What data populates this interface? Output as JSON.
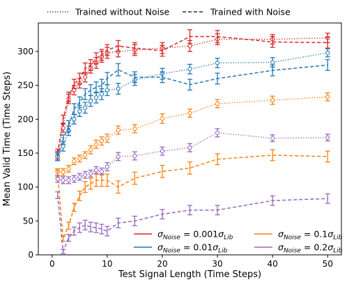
{
  "chart_data": {
    "type": "line",
    "xlabel": "Test Signal Length (Time Steps)",
    "ylabel": "Mean Valid Time (Time Steps)",
    "xlim": [
      -2.5,
      52.5
    ],
    "ylim": [
      0,
      342
    ],
    "xticks": [
      0,
      10,
      20,
      30,
      40,
      50
    ],
    "yticks": [
      0,
      50,
      100,
      150,
      200,
      250,
      300
    ],
    "grid": false,
    "x": [
      1,
      2,
      3,
      4,
      5,
      6,
      7,
      8,
      9,
      10,
      12,
      15,
      20,
      25,
      30,
      40,
      50
    ],
    "style_legend": {
      "position": "top-outside",
      "entries": [
        {
          "label": "Trained without Noise",
          "dash": "dotted"
        },
        {
          "label": "Trained with Noise",
          "dash": "dashed"
        }
      ]
    },
    "noise_legend": {
      "position": "bottom-right",
      "entries": [
        {
          "label": "σNoise = 0.001σLib",
          "color": "#d62728"
        },
        {
          "label": "σNoise = 0.01σLib",
          "color": "#1f77b4"
        },
        {
          "label": "σNoise = 0.1σLib",
          "color": "#ff7f0e"
        },
        {
          "label": "σNoise = 0.2σLib",
          "color": "#9467bd"
        }
      ]
    },
    "series": [
      {
        "noise": "0.001",
        "trained": "without",
        "color": "#d62728",
        "dash": "dotted",
        "values": [
          147,
          187,
          230,
          243,
          253,
          262,
          275,
          283,
          292,
          298,
          300,
          302,
          305,
          308,
          318,
          318,
          320
        ],
        "errors": [
          6,
          6,
          7,
          7,
          7,
          7,
          7,
          8,
          8,
          8,
          8,
          8,
          8,
          8,
          8,
          7,
          7
        ]
      },
      {
        "noise": "0.001",
        "trained": "with",
        "color": "#d62728",
        "dash": "dashed",
        "values": [
          150,
          200,
          233,
          252,
          260,
          275,
          280,
          290,
          295,
          302,
          308,
          305,
          301,
          322,
          322,
          314,
          313
        ],
        "errors": [
          6,
          6,
          7,
          7,
          8,
          8,
          8,
          8,
          8,
          8,
          8,
          8,
          8,
          10,
          9,
          8,
          8
        ]
      },
      {
        "noise": "0.01",
        "trained": "without",
        "color": "#1f77b4",
        "dash": "dotted",
        "values": [
          145,
          160,
          183,
          200,
          212,
          217,
          227,
          232,
          237,
          243,
          245,
          258,
          267,
          274,
          283,
          284,
          298
        ],
        "errors": [
          6,
          7,
          7,
          7,
          8,
          8,
          8,
          8,
          8,
          8,
          8,
          8,
          8,
          7,
          7,
          7,
          6
        ]
      },
      {
        "noise": "0.01",
        "trained": "with",
        "color": "#1f77b4",
        "dash": "dashed",
        "values": [
          145,
          170,
          190,
          215,
          225,
          237,
          243,
          247,
          250,
          260,
          273,
          262,
          262,
          251,
          260,
          272,
          280
        ],
        "errors": [
          6,
          7,
          8,
          8,
          8,
          8,
          8,
          8,
          9,
          9,
          9,
          8,
          8,
          8,
          8,
          8,
          8
        ]
      },
      {
        "noise": "0.1",
        "trained": "without",
        "color": "#ff7f0e",
        "dash": "dotted",
        "values": [
          122,
          122,
          127,
          138,
          142,
          147,
          155,
          163,
          168,
          172,
          184,
          186,
          201,
          209,
          223,
          228,
          233
        ],
        "errors": [
          5,
          5,
          5,
          5,
          5,
          5,
          6,
          6,
          6,
          6,
          6,
          6,
          7,
          6,
          6,
          6,
          6
        ]
      },
      {
        "noise": "0.1",
        "trained": "with",
        "color": "#ff7f0e",
        "dash": "dashed",
        "values": [
          120,
          24,
          43,
          70,
          87,
          100,
          105,
          110,
          110,
          110,
          100,
          113,
          123,
          128,
          141,
          147,
          145
        ],
        "errors": [
          5,
          4,
          5,
          6,
          7,
          8,
          8,
          9,
          9,
          9,
          9,
          9,
          9,
          9,
          8,
          8,
          8
        ]
      },
      {
        "noise": "0.2",
        "trained": "without",
        "color": "#9467bd",
        "dash": "dotted",
        "values": [
          112,
          110,
          110,
          112,
          115,
          118,
          120,
          125,
          123,
          130,
          145,
          146,
          153,
          158,
          180,
          172,
          173
        ],
        "errors": [
          5,
          5,
          5,
          5,
          5,
          5,
          5,
          5,
          5,
          6,
          6,
          6,
          6,
          6,
          6,
          5,
          5
        ]
      },
      {
        "noise": "0.2",
        "trained": "with",
        "color": "#9467bd",
        "dash": "dashed",
        "values": [
          88,
          5,
          25,
          35,
          40,
          44,
          41,
          40,
          38,
          35,
          47,
          50,
          60,
          66,
          66,
          80,
          83
        ],
        "errors": [
          5,
          3,
          5,
          6,
          7,
          7,
          7,
          7,
          7,
          7,
          7,
          7,
          7,
          7,
          7,
          7,
          7
        ]
      }
    ]
  }
}
